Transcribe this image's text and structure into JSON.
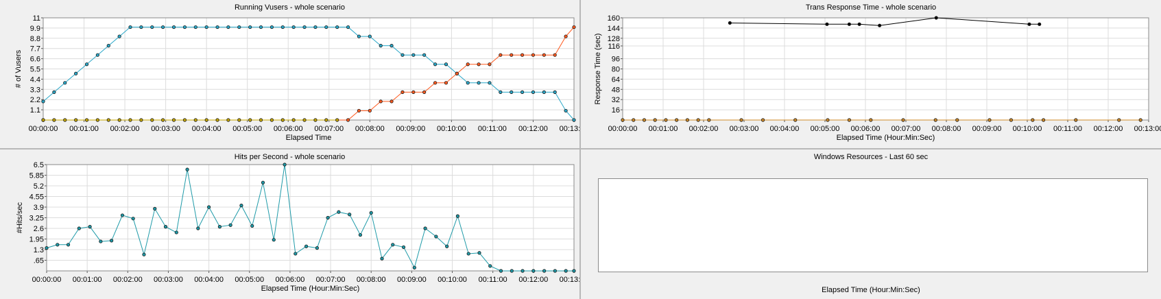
{
  "chart_data": [
    {
      "type": "line",
      "title": "Running Vusers - whole scenario",
      "xlabel": "Elapsed Time",
      "ylabel": "# of Vusers",
      "x_unit": "minutes",
      "xlim": [
        0,
        13
      ],
      "ylim": [
        0,
        11
      ],
      "x_ticks": [
        "00:00:00",
        "00:01:00",
        "00:02:00",
        "00:03:00",
        "00:04:00",
        "00:05:00",
        "00:06:00",
        "00:07:00",
        "00:08:00",
        "00:09:00",
        "00:10:00",
        "00:11:00",
        "00:12:00",
        "00:13:00"
      ],
      "y_ticks": [
        "1.1",
        "2.2",
        "3.3",
        "4.4",
        "5.5",
        "6.6",
        "7.7",
        "8.8",
        "9.9",
        "11"
      ],
      "grid": true,
      "series": [
        {
          "color": "#2aa7c8",
          "marker_every": 1,
          "x": [
            0,
            0.267,
            0.533,
            0.8,
            1.067,
            1.333,
            1.6,
            1.867,
            2.133,
            2.4,
            2.667,
            2.933,
            3.2,
            3.467,
            3.733,
            4,
            4.267,
            4.533,
            4.8,
            5.067,
            5.333,
            5.6,
            5.867,
            6.133,
            6.4,
            6.667,
            6.933,
            7.2,
            7.467,
            7.733,
            8,
            8.267,
            8.533,
            8.8,
            9.067,
            9.333,
            9.6,
            9.867,
            10.133,
            10.4,
            10.667,
            10.933,
            11.2,
            11.467,
            11.733,
            12,
            12.267,
            12.533,
            12.8,
            13
          ],
          "values": [
            2,
            3,
            4,
            5,
            6,
            7,
            8,
            9,
            10,
            10,
            10,
            10,
            10,
            10,
            10,
            10,
            10,
            10,
            10,
            10,
            10,
            10,
            10,
            10,
            10,
            10,
            10,
            10,
            10,
            9,
            9,
            8,
            8,
            7,
            7,
            7,
            6,
            6,
            5,
            4,
            4,
            4,
            3,
            3,
            3,
            3,
            3,
            3,
            1,
            0
          ]
        },
        {
          "color": "#ff5a1f",
          "marker_every": 1,
          "x": [
            0,
            7.467,
            7.733,
            8,
            8.267,
            8.533,
            8.8,
            9.067,
            9.333,
            9.6,
            9.867,
            10.133,
            10.4,
            10.667,
            10.933,
            11.2,
            11.467,
            11.733,
            12,
            12.267,
            12.533,
            12.8,
            13
          ],
          "values": [
            0,
            0,
            1,
            1,
            2,
            2,
            3,
            3,
            3,
            4,
            4,
            5,
            6,
            6,
            6,
            7,
            7,
            7,
            7,
            7,
            7,
            9,
            10
          ]
        },
        {
          "color": "#c8a800",
          "marker_every": 1,
          "x": [
            0,
            0.267,
            0.533,
            0.8,
            1.067,
            1.333,
            1.6,
            1.867,
            2.133,
            2.4,
            2.667,
            2.933,
            3.2,
            3.467,
            3.733,
            4,
            4.267,
            4.533,
            4.8,
            5.067,
            5.333,
            5.6,
            5.867,
            6.133,
            6.4,
            6.667,
            6.933,
            7.2
          ],
          "values": [
            0,
            0,
            0,
            0,
            0,
            0,
            0,
            0,
            0,
            0,
            0,
            0,
            0,
            0,
            0,
            0,
            0,
            0,
            0,
            0,
            0,
            0,
            0,
            0,
            0,
            0,
            0,
            0
          ]
        }
      ]
    },
    {
      "type": "line",
      "title": "Trans Response Time - whole scenario",
      "xlabel": "Elapsed Time (Hour:Min:Sec)",
      "ylabel": "Response Time (sec)",
      "x_unit": "minutes",
      "xlim": [
        0,
        13
      ],
      "ylim": [
        0,
        160
      ],
      "x_ticks": [
        "00:00:00",
        "00:01:00",
        "00:02:00",
        "00:03:00",
        "00:04:00",
        "00:05:00",
        "00:06:00",
        "00:07:00",
        "00:08:00",
        "00:09:00",
        "00:10:00",
        "00:11:00",
        "00:12:00",
        "00:13:00"
      ],
      "y_ticks": [
        "16",
        "32",
        "48",
        "64",
        "80",
        "96",
        "116",
        "128",
        "144",
        "160"
      ],
      "grid": true,
      "series": [
        {
          "color": "#000000",
          "marker_every": 1,
          "x": [
            2.65,
            5.05,
            5.6,
            5.85,
            6.35,
            7.75,
            10.05,
            10.3
          ],
          "values": [
            152,
            150,
            150,
            150,
            148,
            160,
            150,
            150
          ]
        },
        {
          "color": "#d08b2a",
          "marker_every": 1,
          "x": [
            0,
            0.267,
            0.533,
            0.8,
            1.067,
            1.333,
            1.6,
            1.867,
            2.133,
            2.933,
            3.467,
            4.267,
            5.067,
            5.6,
            6.133,
            6.933,
            7.733,
            8.267,
            9.067,
            9.6,
            10.133,
            10.4,
            11.2,
            12.267,
            12.8
          ],
          "values": [
            0,
            0,
            0,
            0,
            0,
            0,
            0,
            0,
            0,
            0,
            0,
            0,
            0,
            0,
            0,
            0,
            0,
            0,
            0,
            0,
            0,
            0,
            0,
            0,
            0
          ]
        }
      ]
    },
    {
      "type": "line",
      "title": "Hits per Second - whole scenario",
      "xlabel": "Elapsed Time (Hour:Min:Sec)",
      "ylabel": "#Hits/sec",
      "x_unit": "minutes",
      "xlim": [
        0,
        13
      ],
      "ylim": [
        0,
        6.5
      ],
      "x_ticks": [
        "00:00:00",
        "00:01:00",
        "00:02:00",
        "00:03:00",
        "00:04:00",
        "00:05:00",
        "00:06:00",
        "00:07:00",
        "00:08:00",
        "00:09:00",
        "00:10:00",
        "00:11:00",
        "00:12:00",
        "00:13:00"
      ],
      "y_ticks": [
        ".65",
        "1.3",
        "1.95",
        "2.6",
        "3.25",
        "3.9",
        "4.55",
        "5.2",
        "5.85",
        "6.5"
      ],
      "grid": true,
      "series": [
        {
          "color": "#1e9aa8",
          "marker_every": 1,
          "x": [
            0,
            0.267,
            0.533,
            0.8,
            1.067,
            1.333,
            1.6,
            1.867,
            2.133,
            2.4,
            2.667,
            2.933,
            3.2,
            3.467,
            3.733,
            4,
            4.267,
            4.533,
            4.8,
            5.067,
            5.333,
            5.6,
            5.867,
            6.133,
            6.4,
            6.667,
            6.933,
            7.2,
            7.467,
            7.733,
            8,
            8.267,
            8.533,
            8.8,
            9.067,
            9.333,
            9.6,
            9.867,
            10.133,
            10.4,
            10.667,
            10.933,
            11.2,
            11.467,
            11.733,
            12,
            12.267,
            12.533,
            12.8,
            13
          ],
          "values": [
            1.4,
            1.6,
            1.6,
            2.6,
            2.7,
            1.8,
            1.85,
            3.4,
            3.2,
            1,
            3.8,
            2.7,
            2.35,
            6.2,
            2.6,
            3.9,
            2.7,
            2.8,
            4,
            2.75,
            5.4,
            1.9,
            6.5,
            1.05,
            1.5,
            1.4,
            3.25,
            3.6,
            3.45,
            2.2,
            3.55,
            0.75,
            1.6,
            1.45,
            0.2,
            2.6,
            2.1,
            1.5,
            3.35,
            1.05,
            1.1,
            0.3,
            0,
            0,
            0,
            0,
            0,
            0,
            0,
            0
          ]
        }
      ]
    }
  ],
  "windows_resources": {
    "title": "Windows Resources - Last 60 sec",
    "xlabel": "Elapsed Time (Hour:Min:Sec)"
  }
}
